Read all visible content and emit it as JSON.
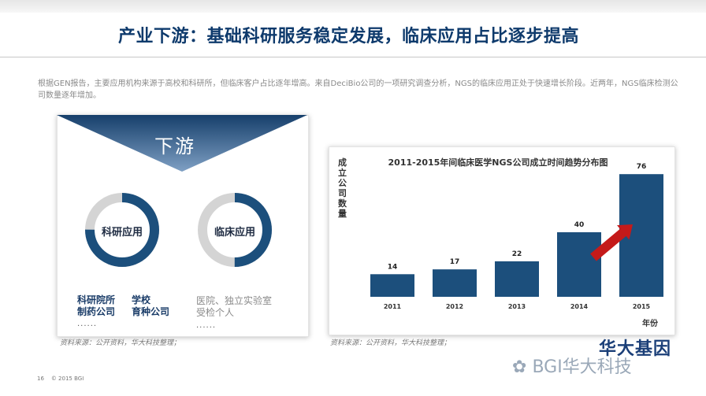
{
  "header": {
    "title": "产业下游：基础科研服务稳定发展，临床应用占比逐步提高"
  },
  "intro": "根据GEN报告，主要应用机构来源于高校和科研所，但临床客户占比逐年增高。来自DeciBio公司的一项研究调查分析，NGS的临床应用正处于快速增长阶段。近两年，NGS临床检测公司数量逐年增加。",
  "downstream": {
    "label": "下游",
    "research": {
      "label": "科研应用",
      "share": 0.75,
      "items": [
        "科研院所",
        "学校",
        "制药公司",
        "育种公司"
      ],
      "ellipsis": "......"
    },
    "clinical": {
      "label": "临床应用",
      "share": 0.5,
      "items": [
        "医院、独立实验室",
        "受检个人"
      ],
      "ellipsis": "......"
    },
    "source": "资料来源：公开资料，华大科技整理；"
  },
  "chart_data": {
    "type": "bar",
    "title": "2011-2015年间临床医学NGS公司成立时间趋势分布图",
    "ylabel": "成立公司数量",
    "xlabel": "年份",
    "categories": [
      "2011",
      "2012",
      "2013",
      "2014",
      "2015"
    ],
    "values": [
      14,
      17,
      22,
      40,
      76
    ],
    "ylim": [
      0,
      80
    ],
    "grid": false,
    "bar_color": "#1c4f7c",
    "arrow_color": "#c41a1a"
  },
  "chart_source": "资料来源：公开资料，华大科技整理；",
  "footer": {
    "page": "16",
    "copyright": "© 2015 BGI"
  },
  "watermark": {
    "logo": "华大基因",
    "text": "BGI华大科技"
  },
  "colors": {
    "title": "#0e3a6c",
    "ring_fill": "#1c4f7c",
    "ring_track": "#d4d4d4",
    "triangle": "#1a4a7a"
  }
}
